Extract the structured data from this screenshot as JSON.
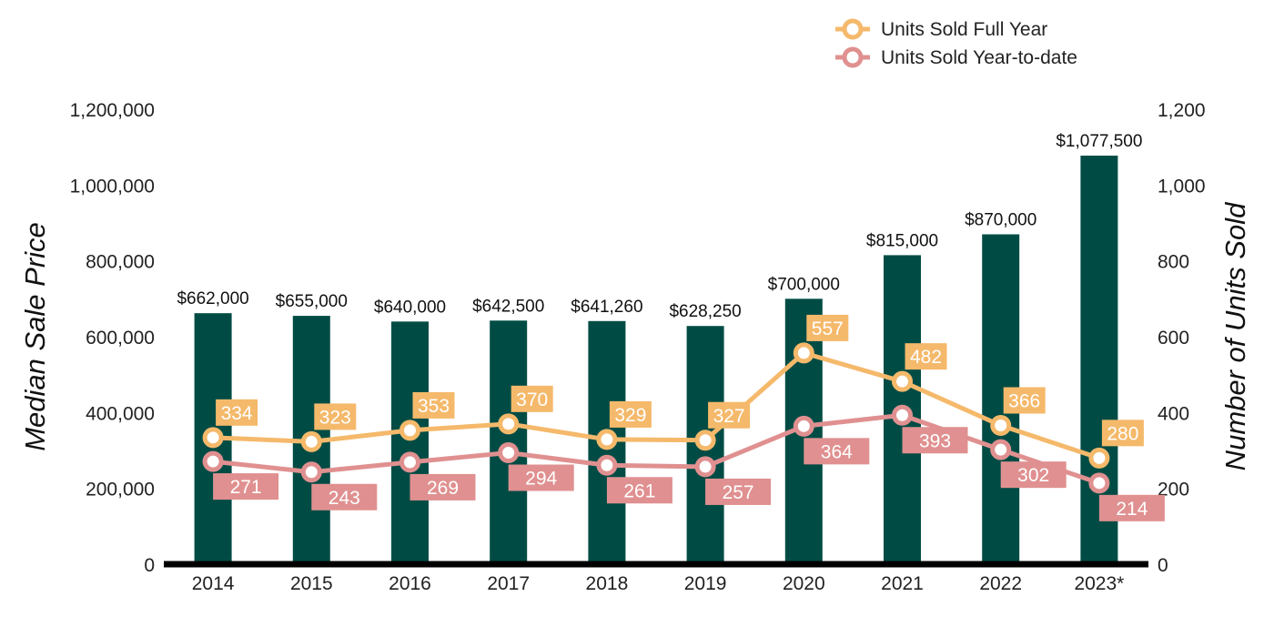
{
  "chart_data": {
    "type": "bar",
    "categories": [
      "2014",
      "2015",
      "2016",
      "2017",
      "2018",
      "2019",
      "2020",
      "2021",
      "2022",
      "2023*"
    ],
    "bar_series": {
      "values": [
        662000,
        655000,
        640000,
        642500,
        641260,
        628250,
        700000,
        815000,
        870000,
        1077500
      ],
      "labels": [
        "$662,000",
        "$655,000",
        "$640,000",
        "$642,500",
        "$641,260",
        "$628,250",
        "$700,000",
        "$815,000",
        "$870,000",
        "$1,077,500"
      ],
      "color": "#004c45"
    },
    "line_series": [
      {
        "name": "Units Sold Full Year",
        "values": [
          334,
          323,
          353,
          370,
          329,
          327,
          557,
          482,
          366,
          280
        ],
        "color": "#f5b96b",
        "label_position": "above"
      },
      {
        "name": "Units Sold Year-to-date",
        "values": [
          271,
          243,
          269,
          294,
          261,
          257,
          364,
          393,
          302,
          214
        ],
        "color": "#e09090",
        "label_position": "below"
      }
    ],
    "ylabel_left": "Median Sale Price",
    "ylabel_right": "Number of Units Sold",
    "ylim_left": [
      0,
      1200000
    ],
    "ylim_right": [
      0,
      1200
    ],
    "yticks_left": [
      "0",
      "200,000",
      "400,000",
      "600,000",
      "800,000",
      "1,000,000",
      "1,200,000"
    ],
    "yticks_right": [
      "0",
      "200",
      "400",
      "600",
      "800",
      "1,000",
      "1,200"
    ],
    "grid": false,
    "legend_position": "top-right"
  }
}
